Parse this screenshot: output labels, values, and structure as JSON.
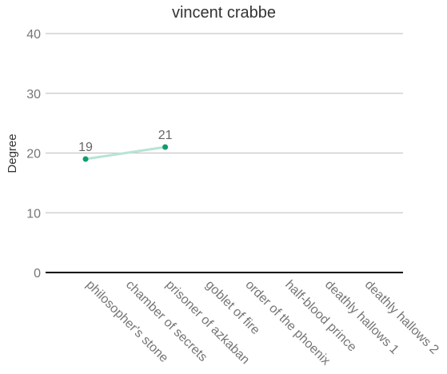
{
  "chart_data": {
    "type": "line",
    "title": "vincent crabbe",
    "xlabel": "",
    "ylabel": "Degree",
    "ylim": [
      0,
      40
    ],
    "yticks": [
      0,
      10,
      20,
      30,
      40
    ],
    "grid": true,
    "categories": [
      "philosopher's stone",
      "chamber of secrets",
      "prisoner of azkaban",
      "goblet of fire",
      "order of the phoenix",
      "half-blood prince",
      "deathly hallows 1",
      "deathly hallows 2"
    ],
    "series": [
      {
        "values": [
          19,
          null,
          21,
          null,
          null,
          null,
          null,
          null
        ],
        "line_color": "#b7e4d4",
        "point_color": "#0f9d6b"
      }
    ],
    "data_labels": [
      {
        "index": 0,
        "text": "19"
      },
      {
        "index": 2,
        "text": "21"
      }
    ],
    "colors": {
      "grid": "#c8c8c8",
      "axis": "#000000"
    }
  }
}
